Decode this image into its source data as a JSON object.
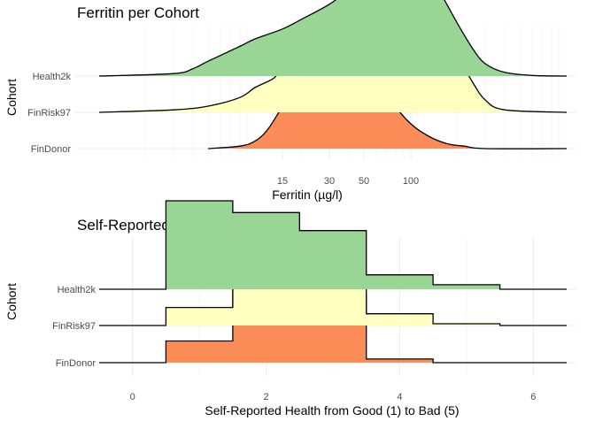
{
  "chart_data": [
    {
      "type": "ridgeline-density",
      "title": "Ferritin per Cohort",
      "xlabel": "Ferritin (µg/l)",
      "ylabel": "Cohort",
      "x_scale": "log10",
      "x_tick_labels": [
        "15",
        "30",
        "50",
        "100"
      ],
      "x_ticks": [
        15,
        30,
        50,
        100
      ],
      "xlim": [
        1,
        1000
      ],
      "grid": true,
      "series": [
        {
          "name": "FinDonor",
          "color": "#fc8d59",
          "x": [
            5,
            8,
            10,
            12,
            15,
            20,
            25,
            30,
            35,
            40,
            50,
            60,
            70,
            80,
            100,
            130,
            170,
            220,
            300,
            1000
          ],
          "density": [
            0.0,
            0.02,
            0.06,
            0.15,
            0.34,
            0.58,
            0.75,
            0.86,
            0.92,
            0.9,
            0.8,
            0.64,
            0.48,
            0.34,
            0.2,
            0.1,
            0.04,
            0.02,
            0.0,
            0.0
          ]
        },
        {
          "name": "FinRisk97",
          "color": "#ffffbf",
          "x": [
            1,
            3,
            5,
            8,
            10,
            13,
            15,
            20,
            25,
            30,
            40,
            50,
            60,
            70,
            80,
            100,
            120,
            150,
            200,
            250,
            300,
            400,
            1000
          ],
          "density": [
            0.0,
            0.02,
            0.05,
            0.12,
            0.2,
            0.27,
            0.34,
            0.4,
            0.46,
            0.52,
            0.62,
            0.76,
            0.86,
            0.93,
            0.96,
            0.93,
            0.86,
            0.7,
            0.45,
            0.24,
            0.1,
            0.02,
            0.0
          ]
        },
        {
          "name": "Health2k",
          "color": "#99d594",
          "x": [
            1,
            3,
            4,
            5,
            8,
            10,
            15,
            20,
            30,
            40,
            50,
            60,
            70,
            80,
            100,
            120,
            150,
            200,
            250,
            300,
            400,
            600,
            1000
          ],
          "density": [
            0.0,
            0.02,
            0.06,
            0.12,
            0.24,
            0.3,
            0.38,
            0.46,
            0.58,
            0.7,
            0.82,
            0.9,
            0.96,
            0.97,
            0.93,
            0.86,
            0.7,
            0.42,
            0.22,
            0.1,
            0.03,
            0.005,
            0.0
          ]
        }
      ]
    },
    {
      "type": "ridgeline-histogram",
      "title": "Self-Reported Health per Cohort",
      "xlabel": "Self-Reported Health from Good (1) to Bad (5)",
      "ylabel": "Cohort",
      "x_tick_labels": [
        "0",
        "2",
        "4",
        "6"
      ],
      "x_ticks": [
        0,
        2,
        4,
        6
      ],
      "xlim": [
        -0.5,
        6.5
      ],
      "bin_width": 1,
      "grid": true,
      "series": [
        {
          "name": "FinDonor",
          "color": "#fc8d59",
          "categories": [
            0,
            1,
            2,
            3,
            4,
            5,
            6
          ],
          "values": [
            0,
            0.24,
            1.0,
            0.77,
            0.04,
            0,
            0
          ]
        },
        {
          "name": "FinRisk97",
          "color": "#ffffbf",
          "categories": [
            0,
            1,
            2,
            3,
            4,
            5,
            6
          ],
          "values": [
            0,
            0.2,
            0.62,
            0.5,
            0.13,
            0.02,
            0
          ]
        },
        {
          "name": "Health2k",
          "color": "#99d594",
          "categories": [
            0,
            1,
            2,
            3,
            4,
            5,
            6
          ],
          "values": [
            0,
            0.98,
            0.85,
            0.65,
            0.16,
            0.05,
            0
          ]
        }
      ]
    }
  ]
}
